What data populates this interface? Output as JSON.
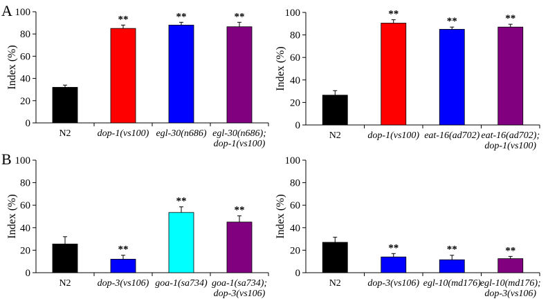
{
  "panel_labels": [
    "A",
    "B"
  ],
  "chart_data": [
    {
      "type": "bar",
      "ylabel": "Index (%)",
      "ylim": [
        0,
        100
      ],
      "yticks": [
        0,
        20,
        40,
        60,
        80,
        100
      ],
      "categories": [
        {
          "lines": [
            "N2"
          ],
          "italic": false
        },
        {
          "lines": [
            "dop-1(vs100)"
          ],
          "italic": true
        },
        {
          "lines": [
            "egl-30(n686)"
          ],
          "italic": true
        },
        {
          "lines": [
            "egl-30(n686);",
            "dop-1(vs100)"
          ],
          "italic": true
        }
      ],
      "values": [
        32,
        85,
        88,
        86.5
      ],
      "errors": [
        2,
        3,
        2.5,
        4
      ],
      "colors": [
        "#000000",
        "#ff0000",
        "#0000ff",
        "#800080"
      ],
      "annotations": [
        "",
        "**",
        "**",
        "**"
      ]
    },
    {
      "type": "bar",
      "ylabel": "Index (%)",
      "ylim": [
        0,
        100
      ],
      "yticks": [
        0,
        20,
        40,
        60,
        80,
        100
      ],
      "categories": [
        {
          "lines": [
            "N2"
          ],
          "italic": false
        },
        {
          "lines": [
            "dop-1(vs100)"
          ],
          "italic": true
        },
        {
          "lines": [
            "eat-16(ad702)"
          ],
          "italic": true
        },
        {
          "lines": [
            "eat-16(ad702);",
            "dop-1(vs100)"
          ],
          "italic": true
        }
      ],
      "values": [
        26.5,
        90.5,
        85,
        87
      ],
      "errors": [
        4,
        3,
        2,
        2.5
      ],
      "colors": [
        "#000000",
        "#ff0000",
        "#0000ff",
        "#800080"
      ],
      "annotations": [
        "",
        "**",
        "**",
        "**"
      ]
    },
    {
      "type": "bar",
      "ylabel": "Index (%)",
      "ylim": [
        0,
        100
      ],
      "yticks": [
        0,
        20,
        40,
        60,
        80,
        100
      ],
      "categories": [
        {
          "lines": [
            "N2"
          ],
          "italic": false
        },
        {
          "lines": [
            "dop-3(vs106)"
          ],
          "italic": true
        },
        {
          "lines": [
            "goa-1(sa734)"
          ],
          "italic": true
        },
        {
          "lines": [
            "goa-1(sa734);",
            "dop-3(vs106)"
          ],
          "italic": true
        }
      ],
      "values": [
        25.5,
        12,
        53.5,
        45
      ],
      "errors": [
        6.5,
        3.5,
        5,
        5.5
      ],
      "colors": [
        "#000000",
        "#0000ff",
        "#00ffff",
        "#800080"
      ],
      "annotations": [
        "",
        "**",
        "**",
        "**"
      ]
    },
    {
      "type": "bar",
      "ylabel": "Index (%)",
      "ylim": [
        0,
        100
      ],
      "yticks": [
        0,
        20,
        40,
        60,
        80,
        100
      ],
      "categories": [
        {
          "lines": [
            "N2"
          ],
          "italic": false
        },
        {
          "lines": [
            "dop-3(vs106)"
          ],
          "italic": true
        },
        {
          "lines": [
            "egl-10(md176)"
          ],
          "italic": true
        },
        {
          "lines": [
            "egl-10(md176);",
            "dop-3(vs106)"
          ],
          "italic": true
        }
      ],
      "values": [
        27,
        14,
        11.5,
        12.5
      ],
      "errors": [
        4.5,
        3,
        4,
        2
      ],
      "colors": [
        "#000000",
        "#0000ff",
        "#0000ff",
        "#800080"
      ],
      "annotations": [
        "",
        "**",
        "**",
        "**"
      ]
    }
  ]
}
